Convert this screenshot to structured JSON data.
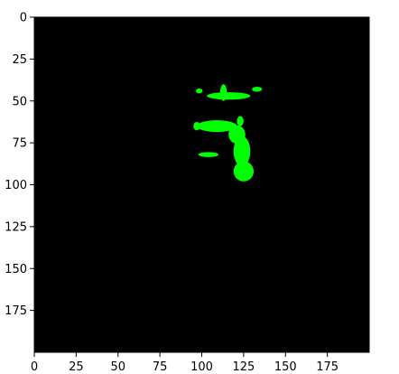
{
  "chart_data": {
    "type": "heatmap",
    "title": "",
    "xlabel": "",
    "ylabel": "",
    "xlim": [
      0,
      200
    ],
    "ylim": [
      200,
      0
    ],
    "y_inverted": true,
    "xticks": [
      0,
      25,
      50,
      75,
      100,
      125,
      150,
      175
    ],
    "yticks": [
      0,
      25,
      50,
      75,
      100,
      125,
      150,
      175
    ],
    "xtick_labels": [
      "0",
      "25",
      "50",
      "75",
      "100",
      "125",
      "150",
      "175"
    ],
    "ytick_labels": [
      "0",
      "25",
      "50",
      "75",
      "100",
      "125",
      "150",
      "175"
    ],
    "grid": false,
    "legend": "none",
    "colors": {
      "background": "#000000",
      "foreground": "#00ff00",
      "axes": "#000000"
    },
    "regions": [
      {
        "shape": "ellipse",
        "cx": 116,
        "cy": 47,
        "rx": 13,
        "ry": 2.2
      },
      {
        "shape": "ellipse",
        "cx": 113,
        "cy": 45,
        "rx": 2,
        "ry": 5
      },
      {
        "shape": "ellipse",
        "cx": 98.5,
        "cy": 44,
        "rx": 2,
        "ry": 1.5
      },
      {
        "shape": "ellipse",
        "cx": 133,
        "cy": 43,
        "rx": 3,
        "ry": 1.5
      },
      {
        "shape": "ellipse",
        "cx": 109,
        "cy": 65,
        "rx": 12,
        "ry": 3.5
      },
      {
        "shape": "ellipse",
        "cx": 121,
        "cy": 70,
        "rx": 5,
        "ry": 5.5
      },
      {
        "shape": "ellipse",
        "cx": 124,
        "cy": 80,
        "rx": 5,
        "ry": 9
      },
      {
        "shape": "ellipse",
        "cx": 125,
        "cy": 92,
        "rx": 6,
        "ry": 6
      },
      {
        "shape": "ellipse",
        "cx": 123,
        "cy": 62,
        "rx": 2,
        "ry": 3
      },
      {
        "shape": "ellipse",
        "cx": 104,
        "cy": 82,
        "rx": 6,
        "ry": 1.5
      },
      {
        "shape": "ellipse",
        "cx": 97,
        "cy": 65,
        "rx": 2,
        "ry": 2.5
      }
    ]
  }
}
